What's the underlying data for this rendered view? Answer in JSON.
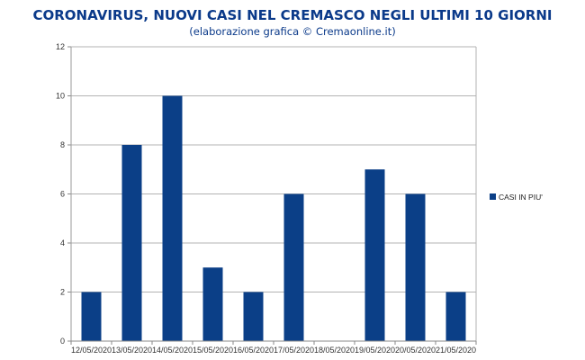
{
  "chart_data": {
    "type": "bar",
    "title": "CORONAVIRUS, NUOVI CASI NEL CREMASCO NEGLI ULTIMI 10 GIORNI",
    "subtitle": "(elaborazione grafica © Cremaonline.it)",
    "categories": [
      "12/05/2020",
      "13/05/2020",
      "14/05/2020",
      "15/05/2020",
      "16/05/2020",
      "17/05/2020",
      "18/05/2020",
      "19/05/2020",
      "20/05/2020",
      "21/05/2020"
    ],
    "series": [
      {
        "name": "CASI IN PIU'",
        "values": [
          2,
          8,
          10,
          3,
          2,
          6,
          0,
          7,
          6,
          2
        ]
      }
    ],
    "ylim": [
      0,
      12
    ],
    "yticks": [
      0,
      2,
      4,
      6,
      8,
      10,
      12
    ],
    "grid": true,
    "legend": "right",
    "colors": {
      "bar": "#0b3f87",
      "title": "#0b3a8a",
      "grid": "#b3b3b3"
    }
  }
}
